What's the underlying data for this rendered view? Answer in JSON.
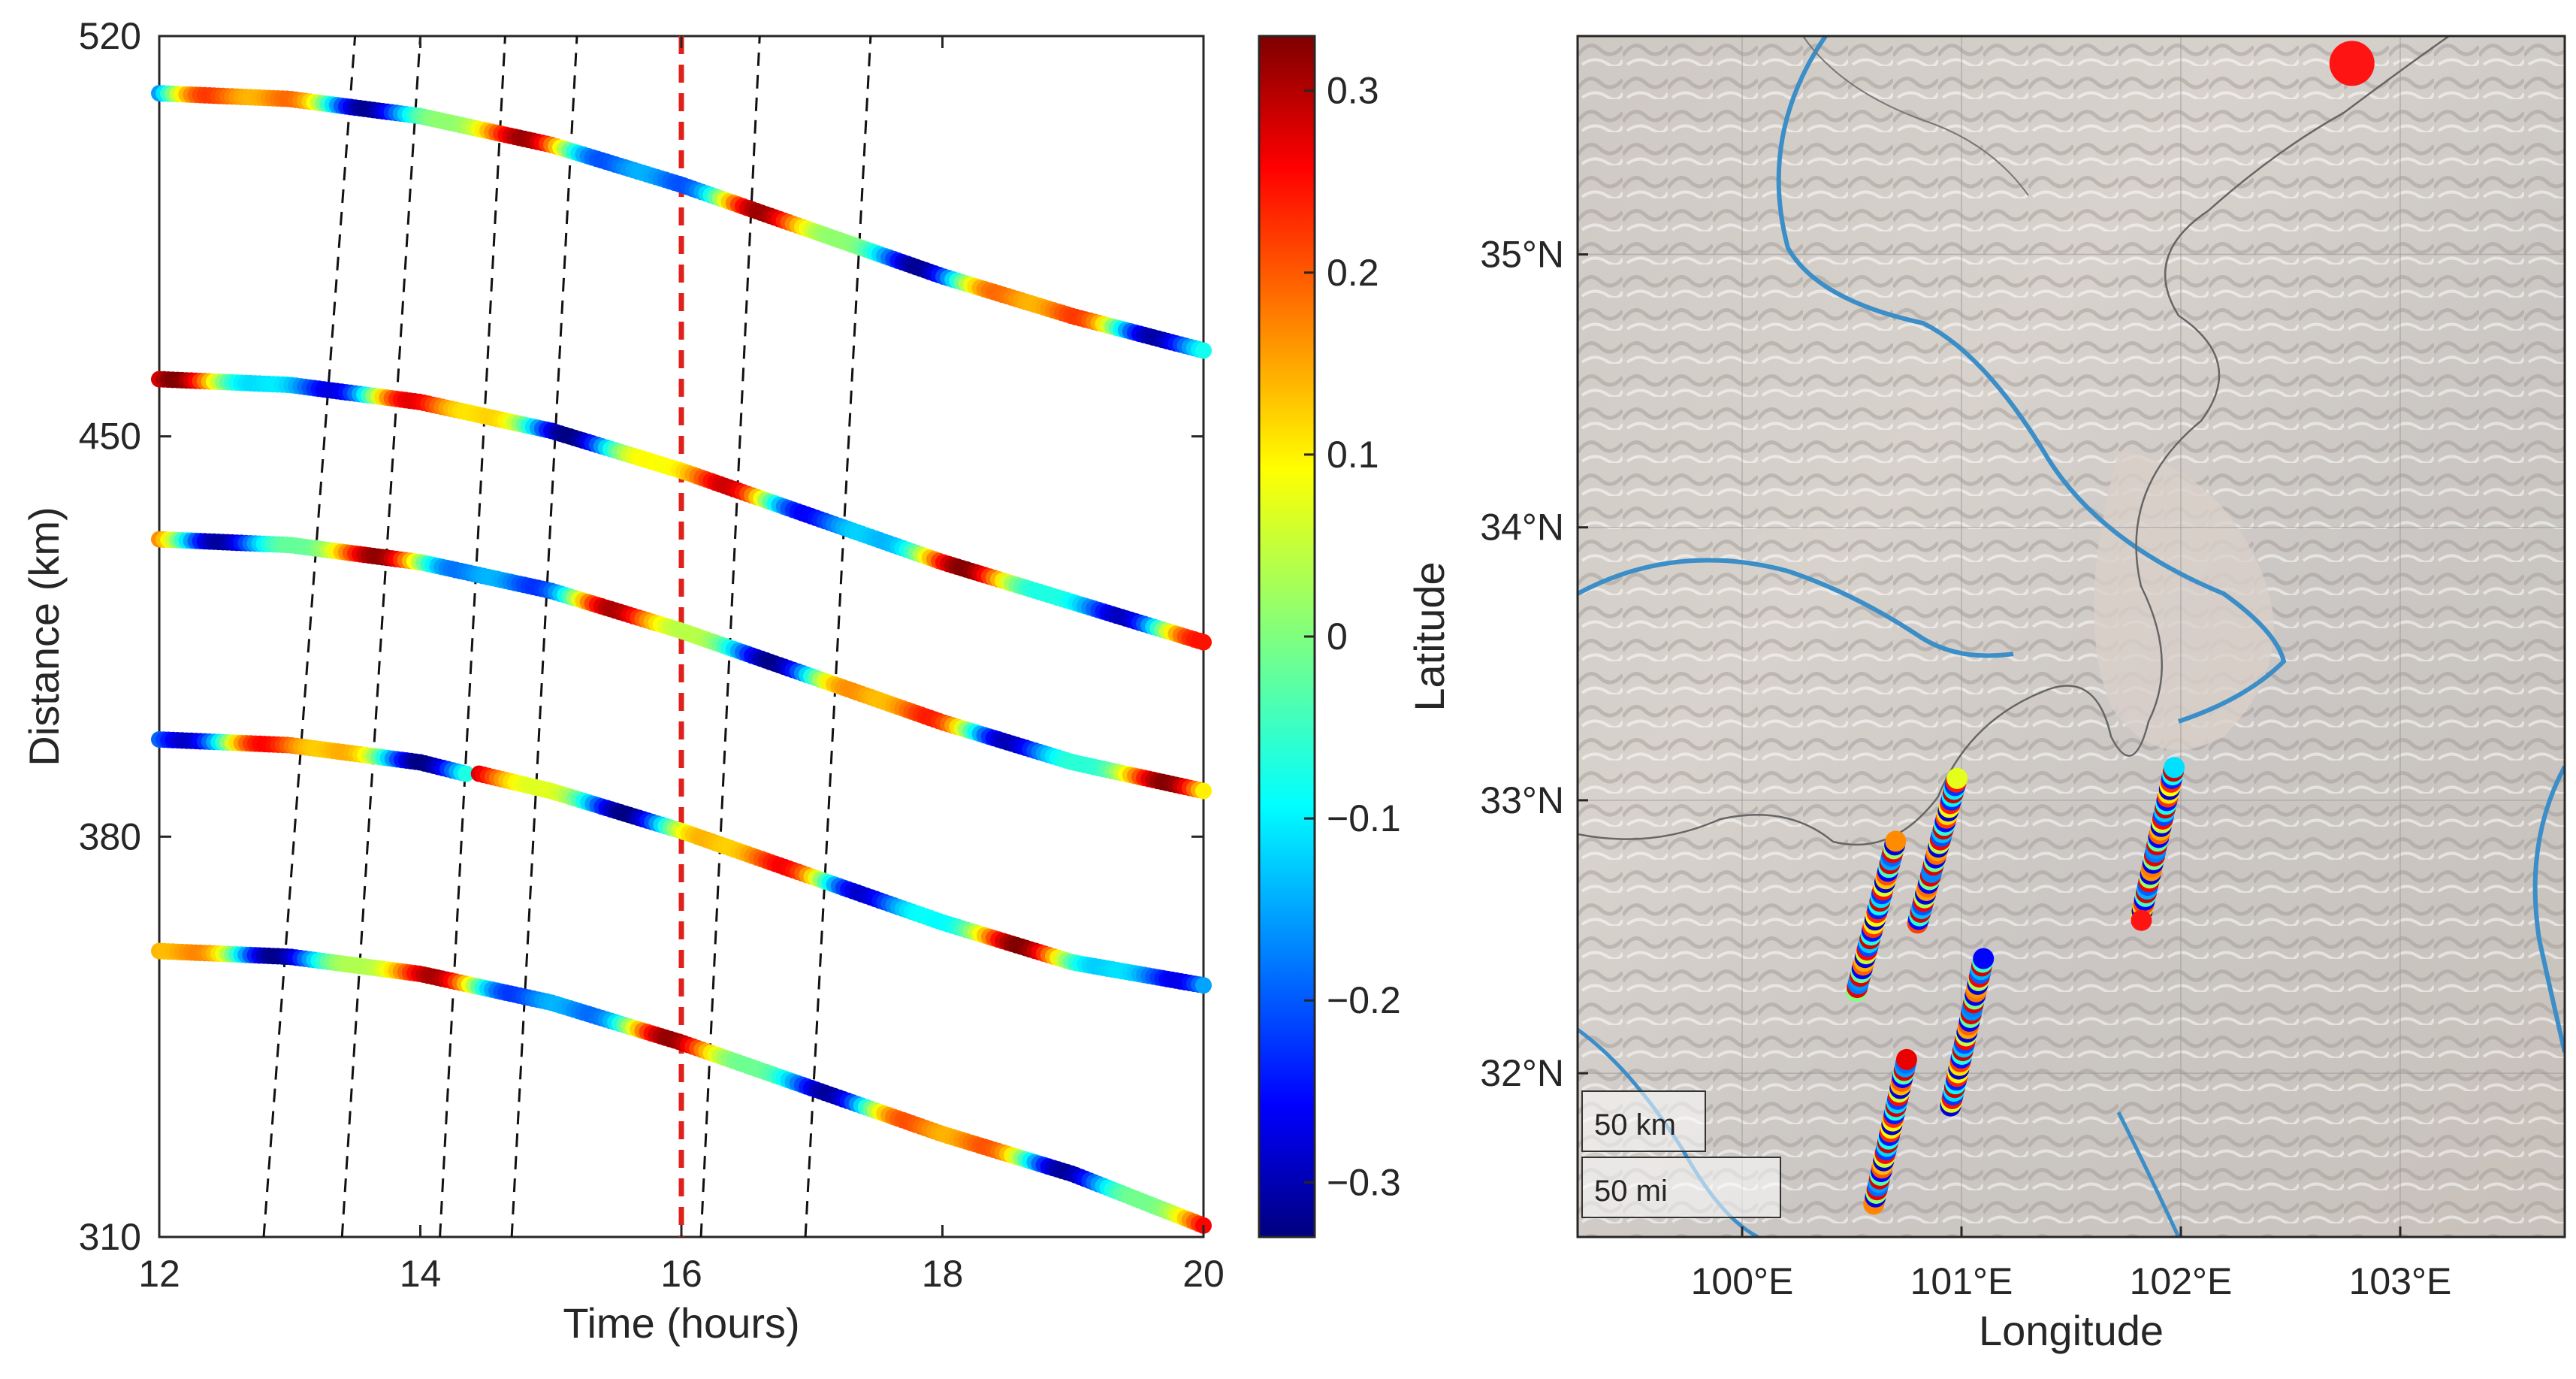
{
  "chart_data": [
    {
      "type": "scatter",
      "xlabel": "Time (hours)",
      "ylabel": "Distance (km)",
      "xlim": [
        12,
        20
      ],
      "ylim": [
        310,
        520
      ],
      "xticks": [
        "12",
        "14",
        "16",
        "18",
        "20"
      ],
      "yticks": [
        "310",
        "380",
        "450",
        "520"
      ],
      "grid": false,
      "series": [
        {
          "x": [
            12,
            13,
            14,
            15,
            16,
            17,
            18,
            19,
            20
          ],
          "y": [
            510,
            509,
            506,
            501,
            494,
            486,
            478,
            471,
            465
          ]
        },
        {
          "x": [
            12,
            13,
            14,
            15,
            16,
            17,
            18,
            19,
            20
          ],
          "y": [
            460,
            459,
            456,
            451,
            444,
            436,
            428,
            421,
            414
          ]
        },
        {
          "x": [
            12,
            13,
            14,
            15,
            16,
            17,
            18,
            19,
            20
          ],
          "y": [
            432,
            431,
            428,
            423,
            416,
            408,
            400,
            393,
            388
          ]
        },
        {
          "x": [
            12,
            13,
            14,
            14.35
          ],
          "y": [
            397,
            396,
            393,
            391
          ]
        },
        {
          "x": [
            14.45,
            15,
            16,
            17,
            18,
            19,
            20
          ],
          "y": [
            391,
            388,
            381,
            373,
            365,
            358,
            354
          ]
        },
        {
          "x": [
            12,
            13,
            14,
            15,
            16,
            17,
            18,
            19,
            20
          ],
          "y": [
            360,
            359,
            356,
            351,
            344,
            336,
            328,
            321,
            312
          ]
        }
      ],
      "reference_lines": {
        "dashed_black": [
          {
            "x": [
              12.8,
              13.5
            ]
          },
          {
            "x": [
              13.4,
              14.0
            ]
          },
          {
            "x": [
              14.15,
              14.65
            ]
          },
          {
            "x": [
              14.7,
              15.2
            ]
          },
          {
            "x": [
              16.15,
              16.6
            ]
          },
          {
            "x": [
              16.95,
              17.45
            ]
          }
        ],
        "dashed_red": {
          "x": 16,
          "color": "#e0201b"
        }
      },
      "colormap": "jet",
      "colorbar": {
        "ticks": [
          "0.3",
          "0.2",
          "0.1",
          "0",
          "−0.1",
          "−0.2",
          "−0.3"
        ],
        "range": [
          -0.33,
          0.33
        ]
      }
    },
    {
      "type": "scatter",
      "xlabel": "Longitude",
      "ylabel": "Latitude",
      "xlim": [
        99.25,
        103.75
      ],
      "ylim": [
        31.4,
        35.8
      ],
      "xticks": [
        "100°E",
        "101°E",
        "102°E",
        "103°E"
      ],
      "yticks": [
        "35°N",
        "34°N",
        "33°N",
        "32°N"
      ],
      "grid": true,
      "tracks": [
        {
          "from": [
            100.52,
            32.3
          ],
          "to": [
            100.7,
            32.85
          ]
        },
        {
          "from": [
            100.8,
            32.55
          ],
          "to": [
            100.98,
            33.08
          ]
        },
        {
          "from": [
            100.95,
            31.88
          ],
          "to": [
            101.1,
            32.42
          ]
        },
        {
          "from": [
            100.6,
            31.52
          ],
          "to": [
            100.75,
            32.05
          ]
        },
        {
          "from": [
            101.82,
            32.58
          ],
          "to": [
            101.97,
            33.12
          ]
        }
      ],
      "markers": [
        {
          "lon": 102.78,
          "lat": 35.7,
          "size": "large",
          "color": "#ff1414"
        },
        {
          "lon": 101.82,
          "lat": 32.56,
          "size": "small",
          "color": "#ff1414"
        }
      ],
      "scalebar": {
        "km": "50 km",
        "mi": "50 mi"
      }
    }
  ]
}
